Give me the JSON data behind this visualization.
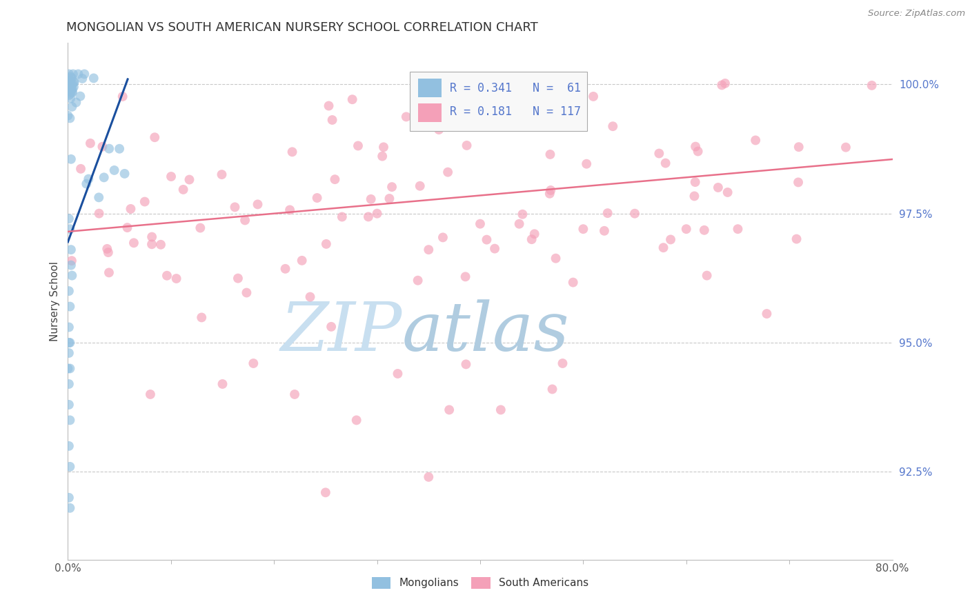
{
  "title": "MONGOLIAN VS SOUTH AMERICAN NURSERY SCHOOL CORRELATION CHART",
  "source": "Source: ZipAtlas.com",
  "ylabel": "Nursery School",
  "xmin": 0.0,
  "xmax": 0.8,
  "ymin": 0.908,
  "ymax": 1.008,
  "xtick_positions": [
    0.0,
    0.8
  ],
  "xtick_labels": [
    "0.0%",
    "80.0%"
  ],
  "ytick_values": [
    0.925,
    0.95,
    0.975,
    1.0
  ],
  "ytick_labels": [
    "92.5%",
    "95.0%",
    "97.5%",
    "100.0%"
  ],
  "blue_color": "#92c0e0",
  "pink_color": "#f4a0b8",
  "blue_line_color": "#1a4f9e",
  "pink_line_color": "#e8708a",
  "grid_color": "#c8c8c8",
  "title_color": "#333333",
  "source_color": "#888888",
  "ytick_color": "#5577cc",
  "xtick_color": "#555555",
  "background_color": "#ffffff",
  "watermark_zip_color": "#c8dff0",
  "watermark_atlas_color": "#b0cce0",
  "dot_size": 100,
  "dot_alpha": 0.65,
  "blue_line_x": [
    0.0,
    0.058
  ],
  "blue_line_y": [
    0.9695,
    1.001
  ],
  "pink_line_x": [
    0.0,
    0.8
  ],
  "pink_line_y": [
    0.9715,
    0.9855
  ],
  "legend_r_blue": "R = 0.341",
  "legend_n_blue": "N =  61",
  "legend_r_pink": "R = 0.181",
  "legend_n_pink": "N = 117"
}
